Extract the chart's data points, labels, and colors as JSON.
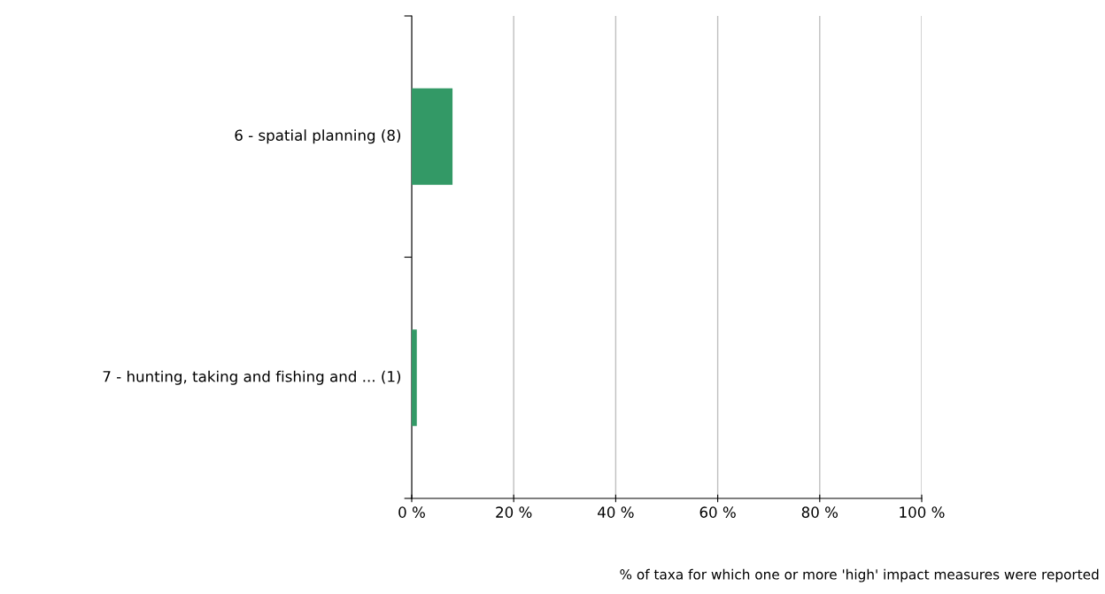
{
  "chart_data": {
    "type": "bar",
    "orientation": "horizontal",
    "categories": [
      "6 - spatial planning (8)",
      "7 - hunting, taking and fishing and ... (1)"
    ],
    "values": [
      8,
      1
    ],
    "color": "#339966",
    "xlim": [
      0,
      100
    ],
    "xticks": [
      {
        "value": 0,
        "label": "0 %"
      },
      {
        "value": 20,
        "label": "20 %"
      },
      {
        "value": 40,
        "label": "40 %"
      },
      {
        "value": 60,
        "label": "60 %"
      },
      {
        "value": 80,
        "label": "80 %"
      },
      {
        "value": 100,
        "label": "100 %"
      }
    ],
    "grid": "x",
    "legend": false,
    "annotations": [
      "% of taxa for which one or more 'high' impact measures were reported"
    ]
  }
}
